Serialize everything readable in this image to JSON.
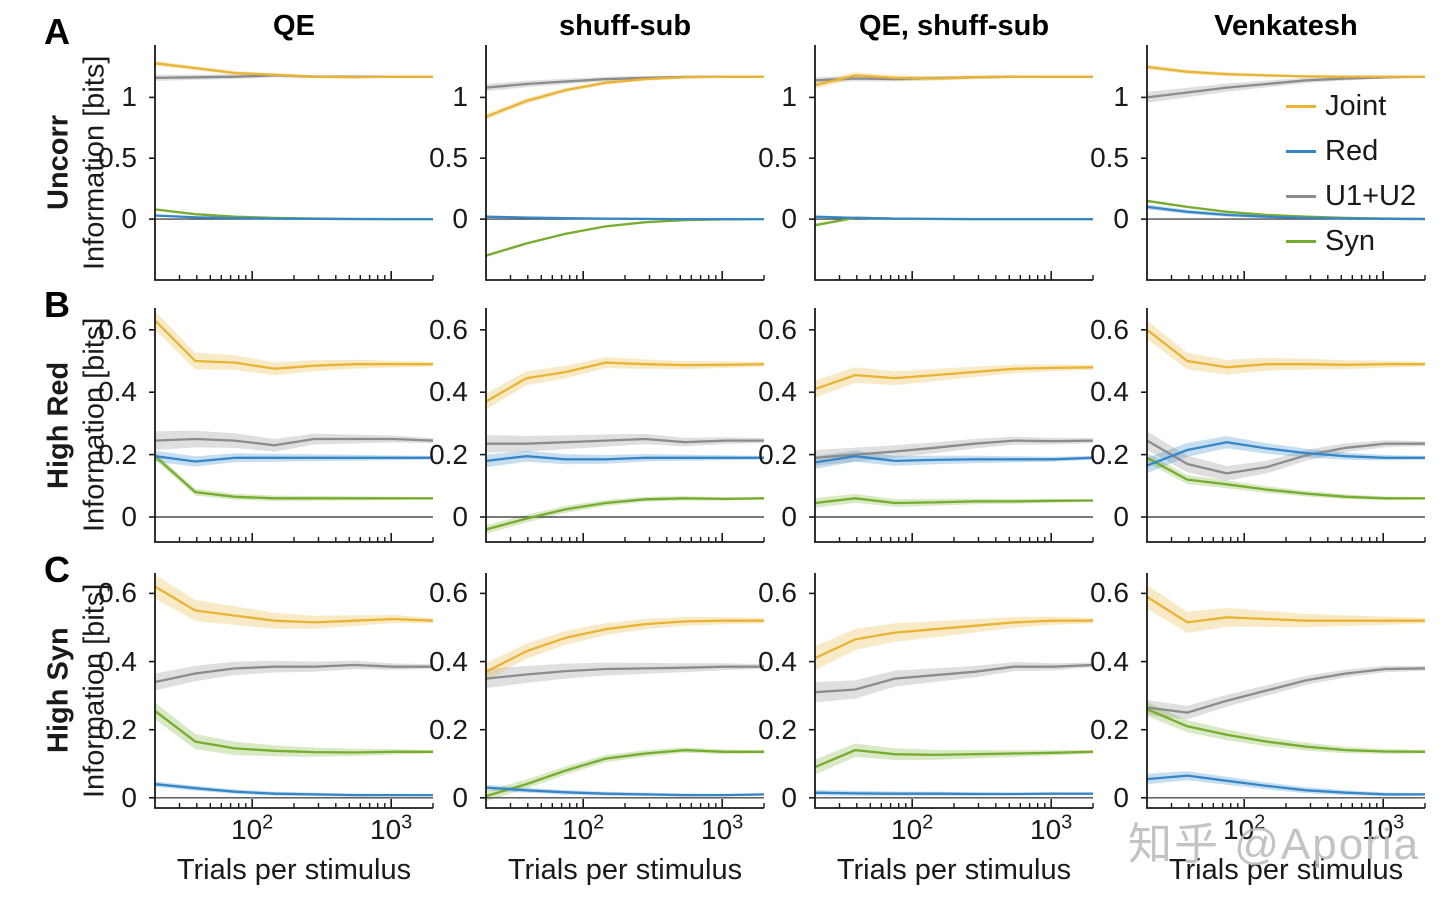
{
  "figure": {
    "watermark": "知乎 @Aporia",
    "panel_letters": [
      "A",
      "B",
      "C"
    ],
    "columns": [
      "QE",
      "shuff-sub",
      "QE, shuff-sub",
      "Venkatesh"
    ],
    "rows": [
      {
        "letter": "A",
        "label": "Uncorr",
        "ylabel": "Information [bits]",
        "ylim": [
          -0.5,
          1.43
        ],
        "yticks": [
          0,
          0.5,
          1
        ]
      },
      {
        "letter": "B",
        "label": "High Red",
        "ylabel": "Information [bits]",
        "ylim": [
          -0.08,
          0.67
        ],
        "yticks": [
          0,
          0.2,
          0.4,
          0.6
        ]
      },
      {
        "letter": "C",
        "label": "High Syn",
        "ylabel": "Information [bits]",
        "ylim": [
          -0.03,
          0.66
        ],
        "yticks": [
          0,
          0.2,
          0.4,
          0.6
        ]
      }
    ],
    "xlabel": "Trials per stimulus",
    "xticklabels": [
      {
        "base": "10",
        "exp": "2",
        "value": 100
      },
      {
        "base": "10",
        "exp": "3",
        "value": 1000
      }
    ],
    "legend": [
      {
        "key": "joint",
        "label": "Joint"
      },
      {
        "key": "red",
        "label": "Red"
      },
      {
        "key": "u1u2",
        "label": "U1+U2"
      },
      {
        "key": "syn",
        "label": "Syn"
      }
    ]
  },
  "colors": {
    "joint": "#E9B435",
    "red": "#3787C8",
    "u1u2": "#8C8C8C",
    "syn": "#77AC30",
    "axis": "#1a1a1a",
    "zero_line": "#4d4d4d"
  },
  "chart_data": {
    "type": "line",
    "x_scale": "log",
    "x": [
      20,
      39,
      75,
      145,
      280,
      540,
      1040,
      2000
    ],
    "xlim": [
      20,
      2000
    ],
    "xlabel": "Trials per stimulus",
    "ylabel": "Information [bits]",
    "x_minor_ticks": [
      30,
      40,
      50,
      60,
      70,
      80,
      90,
      200,
      300,
      400,
      500,
      600,
      700,
      800,
      900,
      2000
    ],
    "x_major_ticks": [
      100,
      1000
    ],
    "legend_entries": [
      "Joint",
      "Red",
      "U1+U2",
      "Syn"
    ],
    "panels": [
      {
        "row": "A",
        "col": "QE",
        "series": [
          {
            "name": "u1u2",
            "values": [
              1.16,
              1.165,
              1.17,
              1.18,
              1.17,
              1.17,
              1.17,
              1.17
            ],
            "band": [
              0.025,
              0.004
            ]
          },
          {
            "name": "syn",
            "values": [
              0.08,
              0.04,
              0.02,
              0.01,
              0.005,
              0.002,
              0,
              0
            ],
            "band": [
              0.01,
              0.002
            ]
          },
          {
            "name": "red",
            "values": [
              0.03,
              0.015,
              0.008,
              0.004,
              0.002,
              0,
              0,
              0
            ],
            "band": [
              0.008,
              0.002
            ]
          },
          {
            "name": "joint",
            "values": [
              1.28,
              1.24,
              1.2,
              1.185,
              1.17,
              1.165,
              1.17,
              1.17
            ],
            "band": [
              0.02,
              0.004
            ]
          }
        ]
      },
      {
        "row": "A",
        "col": "shuff-sub",
        "series": [
          {
            "name": "u1u2",
            "values": [
              1.08,
              1.11,
              1.13,
              1.15,
              1.16,
              1.168,
              1.17,
              1.17
            ],
            "band": [
              0.03,
              0.004
            ]
          },
          {
            "name": "syn",
            "values": [
              -0.3,
              -0.2,
              -0.12,
              -0.06,
              -0.025,
              -0.008,
              -0.002,
              0
            ],
            "band": [
              0.012,
              0.002
            ]
          },
          {
            "name": "red",
            "values": [
              0.02,
              0.013,
              0.008,
              0.004,
              0.002,
              0,
              0,
              0
            ],
            "band": [
              0.008,
              0.002
            ]
          },
          {
            "name": "joint",
            "values": [
              0.84,
              0.97,
              1.06,
              1.12,
              1.15,
              1.165,
              1.17,
              1.17
            ],
            "band": [
              0.025,
              0.004
            ]
          }
        ]
      },
      {
        "row": "A",
        "col": "QE, shuff-sub",
        "series": [
          {
            "name": "u1u2",
            "values": [
              1.14,
              1.155,
              1.15,
              1.158,
              1.165,
              1.17,
              1.17,
              1.17
            ],
            "band": [
              0.025,
              0.004
            ]
          },
          {
            "name": "syn",
            "values": [
              -0.05,
              0.012,
              0.004,
              0.001,
              0,
              0,
              0,
              0
            ],
            "band": [
              0.012,
              0.002
            ]
          },
          {
            "name": "red",
            "values": [
              0.02,
              0.01,
              0.004,
              0.002,
              0,
              0,
              0,
              0
            ],
            "band": [
              0.008,
              0.002
            ]
          },
          {
            "name": "joint",
            "values": [
              1.1,
              1.18,
              1.16,
              1.155,
              1.165,
              1.17,
              1.17,
              1.17
            ],
            "band": [
              0.03,
              0.004
            ]
          }
        ]
      },
      {
        "row": "A",
        "col": "Venkatesh",
        "series": [
          {
            "name": "u1u2",
            "values": [
              1.0,
              1.04,
              1.08,
              1.11,
              1.14,
              1.155,
              1.165,
              1.17
            ],
            "band": [
              0.045,
              0.005
            ]
          },
          {
            "name": "syn",
            "values": [
              0.15,
              0.1,
              0.06,
              0.035,
              0.02,
              0.01,
              0.005,
              0.002
            ],
            "band": [
              0.012,
              0.002
            ]
          },
          {
            "name": "red",
            "values": [
              0.1,
              0.06,
              0.035,
              0.02,
              0.01,
              0.005,
              0.002,
              0
            ],
            "band": [
              0.02,
              0.002
            ]
          },
          {
            "name": "joint",
            "values": [
              1.25,
              1.21,
              1.19,
              1.18,
              1.172,
              1.17,
              1.17,
              1.17
            ],
            "band": [
              0.02,
              0.004
            ]
          }
        ]
      },
      {
        "row": "B",
        "col": "QE",
        "series": [
          {
            "name": "u1u2",
            "values": [
              0.245,
              0.25,
              0.245,
              0.23,
              0.25,
              0.25,
              0.25,
              0.245
            ],
            "band": [
              0.03,
              0.008
            ]
          },
          {
            "name": "syn",
            "values": [
              0.195,
              0.08,
              0.065,
              0.06,
              0.06,
              0.06,
              0.06,
              0.06
            ],
            "band": [
              0.012,
              0.004
            ]
          },
          {
            "name": "red",
            "values": [
              0.195,
              0.178,
              0.19,
              0.19,
              0.19,
              0.19,
              0.19,
              0.19
            ],
            "band": [
              0.018,
              0.006
            ]
          },
          {
            "name": "joint",
            "values": [
              0.63,
              0.5,
              0.495,
              0.475,
              0.485,
              0.49,
              0.49,
              0.49
            ],
            "band": [
              0.03,
              0.008
            ]
          }
        ]
      },
      {
        "row": "B",
        "col": "shuff-sub",
        "series": [
          {
            "name": "u1u2",
            "values": [
              0.235,
              0.235,
              0.24,
              0.245,
              0.25,
              0.24,
              0.245,
              0.245
            ],
            "band": [
              0.028,
              0.008
            ]
          },
          {
            "name": "syn",
            "values": [
              -0.04,
              -0.005,
              0.025,
              0.045,
              0.057,
              0.06,
              0.058,
              0.06
            ],
            "band": [
              0.014,
              0.004
            ]
          },
          {
            "name": "red",
            "values": [
              0.18,
              0.195,
              0.185,
              0.185,
              0.19,
              0.19,
              0.19,
              0.19
            ],
            "band": [
              0.02,
              0.006
            ]
          },
          {
            "name": "joint",
            "values": [
              0.37,
              0.445,
              0.465,
              0.495,
              0.49,
              0.487,
              0.488,
              0.49
            ],
            "band": [
              0.025,
              0.008
            ]
          }
        ]
      },
      {
        "row": "B",
        "col": "QE, shuff-sub",
        "series": [
          {
            "name": "u1u2",
            "values": [
              0.19,
              0.2,
              0.21,
              0.222,
              0.235,
              0.245,
              0.243,
              0.245
            ],
            "band": [
              0.025,
              0.008
            ]
          },
          {
            "name": "syn",
            "values": [
              0.045,
              0.06,
              0.045,
              0.047,
              0.05,
              0.05,
              0.052,
              0.053
            ],
            "band": [
              0.016,
              0.004
            ]
          },
          {
            "name": "red",
            "values": [
              0.175,
              0.195,
              0.18,
              0.183,
              0.185,
              0.185,
              0.185,
              0.19
            ],
            "band": [
              0.02,
              0.006
            ]
          },
          {
            "name": "joint",
            "values": [
              0.41,
              0.455,
              0.445,
              0.455,
              0.465,
              0.475,
              0.478,
              0.48
            ],
            "band": [
              0.028,
              0.008
            ]
          }
        ]
      },
      {
        "row": "B",
        "col": "Venkatesh",
        "series": [
          {
            "name": "u1u2",
            "values": [
              0.245,
              0.17,
              0.14,
              0.16,
              0.198,
              0.222,
              0.235,
              0.235
            ],
            "band": [
              0.03,
              0.008
            ]
          },
          {
            "name": "syn",
            "values": [
              0.19,
              0.12,
              0.105,
              0.088,
              0.075,
              0.065,
              0.06,
              0.06
            ],
            "band": [
              0.016,
              0.004
            ]
          },
          {
            "name": "red",
            "values": [
              0.165,
              0.215,
              0.24,
              0.22,
              0.205,
              0.195,
              0.19,
              0.19
            ],
            "band": [
              0.025,
              0.006
            ]
          },
          {
            "name": "joint",
            "values": [
              0.6,
              0.5,
              0.48,
              0.49,
              0.49,
              0.488,
              0.49,
              0.49
            ],
            "band": [
              0.03,
              0.008
            ]
          }
        ]
      },
      {
        "row": "C",
        "col": "QE",
        "series": [
          {
            "name": "u1u2",
            "values": [
              0.34,
              0.365,
              0.38,
              0.385,
              0.385,
              0.39,
              0.385,
              0.385
            ],
            "band": [
              0.025,
              0.007
            ]
          },
          {
            "name": "syn",
            "values": [
              0.255,
              0.165,
              0.145,
              0.138,
              0.134,
              0.133,
              0.135,
              0.135
            ],
            "band": [
              0.025,
              0.005
            ]
          },
          {
            "name": "red",
            "values": [
              0.04,
              0.028,
              0.018,
              0.012,
              0.01,
              0.008,
              0.008,
              0.008
            ],
            "band": [
              0.008,
              0.003
            ]
          },
          {
            "name": "joint",
            "values": [
              0.62,
              0.55,
              0.535,
              0.52,
              0.515,
              0.52,
              0.525,
              0.52
            ],
            "band": [
              0.035,
              0.008
            ]
          }
        ]
      },
      {
        "row": "C",
        "col": "shuff-sub",
        "series": [
          {
            "name": "u1u2",
            "values": [
              0.35,
              0.362,
              0.372,
              0.378,
              0.38,
              0.382,
              0.385,
              0.385
            ],
            "band": [
              0.028,
              0.007
            ]
          },
          {
            "name": "syn",
            "values": [
              0.005,
              0.04,
              0.08,
              0.115,
              0.13,
              0.14,
              0.135,
              0.135
            ],
            "band": [
              0.015,
              0.005
            ]
          },
          {
            "name": "red",
            "values": [
              0.03,
              0.022,
              0.016,
              0.012,
              0.01,
              0.008,
              0.008,
              0.01
            ],
            "band": [
              0.008,
              0.003
            ]
          },
          {
            "name": "joint",
            "values": [
              0.37,
              0.43,
              0.47,
              0.495,
              0.51,
              0.518,
              0.52,
              0.52
            ],
            "band": [
              0.025,
              0.008
            ]
          }
        ]
      },
      {
        "row": "C",
        "col": "QE, shuff-sub",
        "series": [
          {
            "name": "u1u2",
            "values": [
              0.31,
              0.318,
              0.35,
              0.36,
              0.37,
              0.385,
              0.385,
              0.39
            ],
            "band": [
              0.03,
              0.007
            ]
          },
          {
            "name": "syn",
            "values": [
              0.09,
              0.14,
              0.128,
              0.126,
              0.128,
              0.13,
              0.132,
              0.135
            ],
            "band": [
              0.022,
              0.005
            ]
          },
          {
            "name": "red",
            "values": [
              0.015,
              0.013,
              0.012,
              0.012,
              0.011,
              0.011,
              0.012,
              0.012
            ],
            "band": [
              0.008,
              0.003
            ]
          },
          {
            "name": "joint",
            "values": [
              0.41,
              0.465,
              0.485,
              0.495,
              0.505,
              0.515,
              0.52,
              0.52
            ],
            "band": [
              0.035,
              0.008
            ]
          }
        ]
      },
      {
        "row": "C",
        "col": "Venkatesh",
        "series": [
          {
            "name": "u1u2",
            "values": [
              0.265,
              0.25,
              0.285,
              0.315,
              0.345,
              0.365,
              0.378,
              0.38
            ],
            "band": [
              0.022,
              0.007
            ]
          },
          {
            "name": "syn",
            "values": [
              0.26,
              0.21,
              0.185,
              0.165,
              0.15,
              0.14,
              0.136,
              0.135
            ],
            "band": [
              0.02,
              0.005
            ]
          },
          {
            "name": "red",
            "values": [
              0.055,
              0.065,
              0.05,
              0.035,
              0.022,
              0.015,
              0.01,
              0.01
            ],
            "band": [
              0.015,
              0.004
            ]
          },
          {
            "name": "joint",
            "values": [
              0.59,
              0.515,
              0.53,
              0.525,
              0.52,
              0.52,
              0.52,
              0.52
            ],
            "band": [
              0.035,
              0.008
            ]
          }
        ]
      }
    ]
  }
}
